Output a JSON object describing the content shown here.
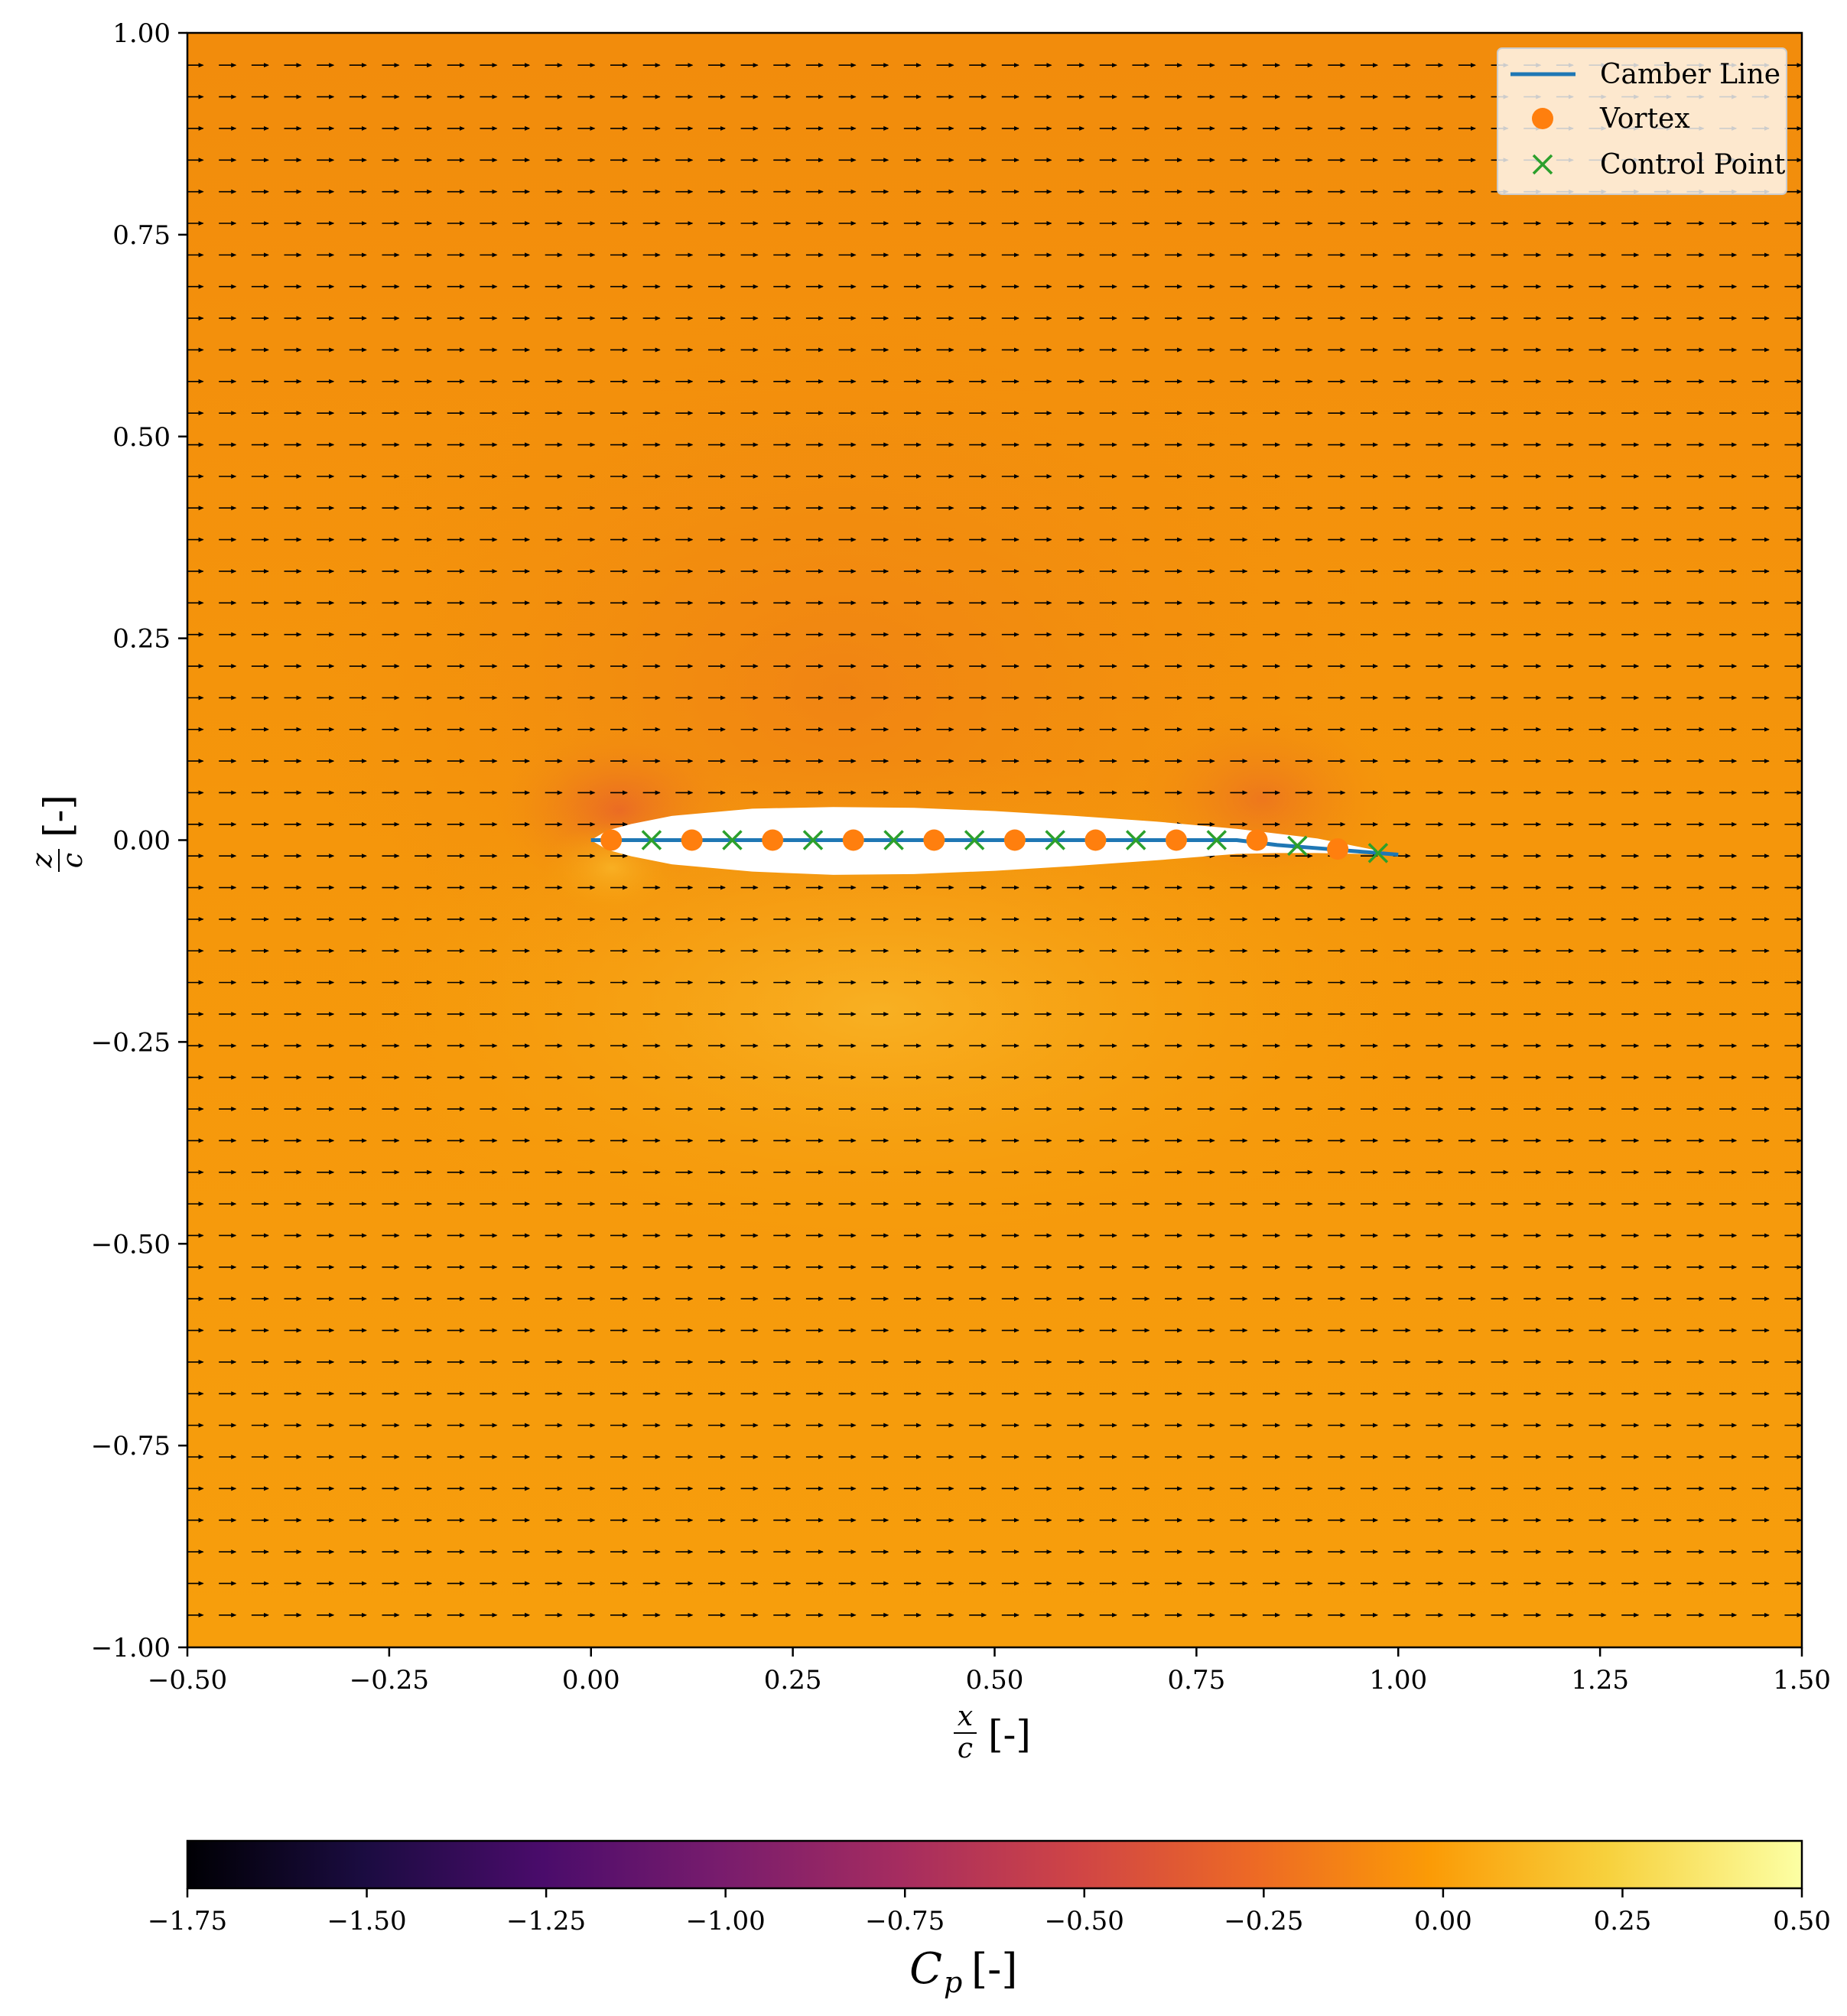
{
  "chart_data": {
    "type": "heatmap",
    "title": "",
    "xlabel_frac": {
      "num": "x",
      "den": "c",
      "unit": "[-]"
    },
    "ylabel_frac": {
      "num": "z",
      "den": "c",
      "unit": "[-]"
    },
    "xlim": [
      -0.5,
      1.5
    ],
    "ylim": [
      -1.0,
      1.0
    ],
    "xticks": [
      "−0.50",
      "−0.25",
      "0.00",
      "0.25",
      "0.50",
      "0.75",
      "1.00",
      "1.25",
      "1.50"
    ],
    "yticks": [
      "1.00",
      "0.75",
      "0.50",
      "0.25",
      "0.00",
      "−0.25",
      "−0.50",
      "−0.75",
      "−1.00"
    ],
    "xtick_values": [
      -0.5,
      -0.25,
      0.0,
      0.25,
      0.5,
      0.75,
      1.0,
      1.25,
      1.5
    ],
    "ytick_values": [
      1.0,
      0.75,
      0.5,
      0.25,
      0.0,
      -0.25,
      -0.5,
      -0.75,
      -1.0
    ],
    "grid": false,
    "colormap": "inferno",
    "colorbar": {
      "label_main": "C",
      "label_sub": "p",
      "label_unit": "[-]",
      "range": [
        -1.75,
        0.5
      ],
      "ticks": [
        "−1.75",
        "−1.50",
        "−1.25",
        "−1.00",
        "−0.75",
        "−0.50",
        "−0.25",
        "0.00",
        "0.25",
        "0.50"
      ],
      "tick_values": [
        -1.75,
        -1.5,
        -1.25,
        -1.0,
        -0.75,
        -0.5,
        -0.25,
        0.0,
        0.25,
        0.5
      ],
      "orientation": "horizontal",
      "placement": "bottom"
    },
    "legend": {
      "placement": "top-right",
      "entries": [
        {
          "label": "Camber Line",
          "marker": "line",
          "color": "#1f77b4"
        },
        {
          "label": "Vortex",
          "marker": "circle",
          "color": "#ff7f0e"
        },
        {
          "label": "Control Point",
          "marker": "x",
          "color": "#2ca02c"
        }
      ]
    },
    "series": [
      {
        "name": "Camber Line",
        "kind": "line",
        "color": "#1f77b4",
        "x": [
          0.0,
          0.05,
          0.1,
          0.2,
          0.3,
          0.4,
          0.5,
          0.6,
          0.7,
          0.8,
          0.85,
          0.9,
          0.95,
          1.0
        ],
        "y": [
          0.0,
          0.0,
          0.0,
          0.0,
          0.0,
          0.0,
          0.0,
          0.0,
          0.0,
          0.0,
          -0.006,
          -0.01,
          -0.014,
          -0.018
        ]
      },
      {
        "name": "Vortex",
        "kind": "scatter",
        "marker": "circle",
        "color": "#ff7f0e",
        "x": [
          0.025,
          0.125,
          0.225,
          0.325,
          0.425,
          0.525,
          0.625,
          0.725,
          0.825,
          0.925
        ],
        "y": [
          0.0,
          0.0,
          0.0,
          0.0,
          0.0,
          0.0,
          0.0,
          0.0,
          0.0,
          -0.011
        ]
      },
      {
        "name": "Control Point",
        "kind": "scatter",
        "marker": "x",
        "color": "#2ca02c",
        "x": [
          0.075,
          0.175,
          0.275,
          0.375,
          0.475,
          0.575,
          0.675,
          0.775,
          0.875,
          0.975
        ],
        "y": [
          0.0,
          0.0,
          0.0,
          0.0,
          0.0,
          0.0,
          0.0,
          0.0,
          -0.007,
          -0.016
        ]
      }
    ],
    "airfoil": {
      "upper": {
        "x": [
          0.0,
          0.02,
          0.05,
          0.1,
          0.2,
          0.3,
          0.4,
          0.5,
          0.6,
          0.7,
          0.8,
          0.85,
          0.9,
          0.95,
          1.0
        ],
        "y": [
          0.0,
          0.012,
          0.02,
          0.03,
          0.039,
          0.041,
          0.04,
          0.036,
          0.03,
          0.023,
          0.014,
          0.008,
          0.002,
          -0.008,
          -0.018
        ]
      },
      "lower": {
        "x": [
          0.0,
          0.02,
          0.05,
          0.1,
          0.2,
          0.3,
          0.4,
          0.5,
          0.6,
          0.7,
          0.8,
          0.85,
          0.9,
          0.95,
          1.0
        ],
        "y": [
          0.0,
          -0.012,
          -0.02,
          -0.03,
          -0.039,
          -0.043,
          -0.042,
          -0.038,
          -0.032,
          -0.025,
          -0.017,
          -0.016,
          -0.016,
          -0.017,
          -0.018
        ]
      }
    },
    "quiver": {
      "x_range": [
        -0.49,
        1.49
      ],
      "y_range": [
        -0.96,
        0.96
      ],
      "nx": 50,
      "ny": 50,
      "direction": "uniform +x (freestream)",
      "color": "#000000"
    }
  }
}
